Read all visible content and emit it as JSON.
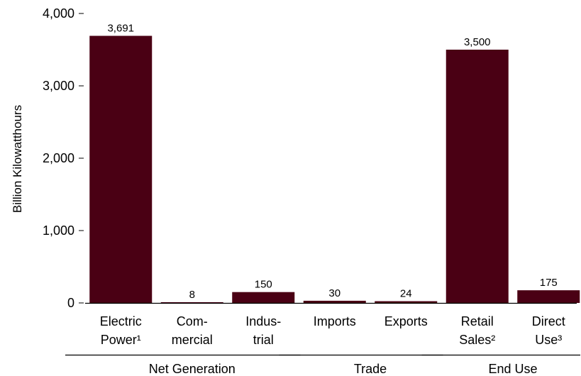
{
  "chart_data": {
    "type": "bar",
    "ylabel": "Billion Kilowatthours",
    "ylim": [
      0,
      4000
    ],
    "yticks": [
      0,
      1000,
      2000,
      3000,
      4000
    ],
    "ytick_labels": [
      "0",
      "1,000",
      "2,000",
      "3,000",
      "4,000"
    ],
    "bar_color": "#4a0014",
    "categories": [
      {
        "lines": [
          "Electric",
          "Power¹"
        ],
        "value": 3691,
        "label": "3,691"
      },
      {
        "lines": [
          "Com-",
          "mercial"
        ],
        "value": 8,
        "label": "8"
      },
      {
        "lines": [
          "Indus-",
          "trial"
        ],
        "value": 150,
        "label": "150"
      },
      {
        "lines": [
          "Imports"
        ],
        "value": 30,
        "label": "30"
      },
      {
        "lines": [
          "Exports"
        ],
        "value": 24,
        "label": "24"
      },
      {
        "lines": [
          "Retail",
          "Sales²"
        ],
        "value": 3500,
        "label": "3,500"
      },
      {
        "lines": [
          "Direct",
          "Use³"
        ],
        "value": 175,
        "label": "175"
      }
    ],
    "groups": [
      {
        "name": "Net Generation",
        "from": 0,
        "to": 2
      },
      {
        "name": "Trade",
        "from": 3,
        "to": 4
      },
      {
        "name": "End Use",
        "from": 5,
        "to": 6
      }
    ],
    "grid": false,
    "legend": "none"
  }
}
